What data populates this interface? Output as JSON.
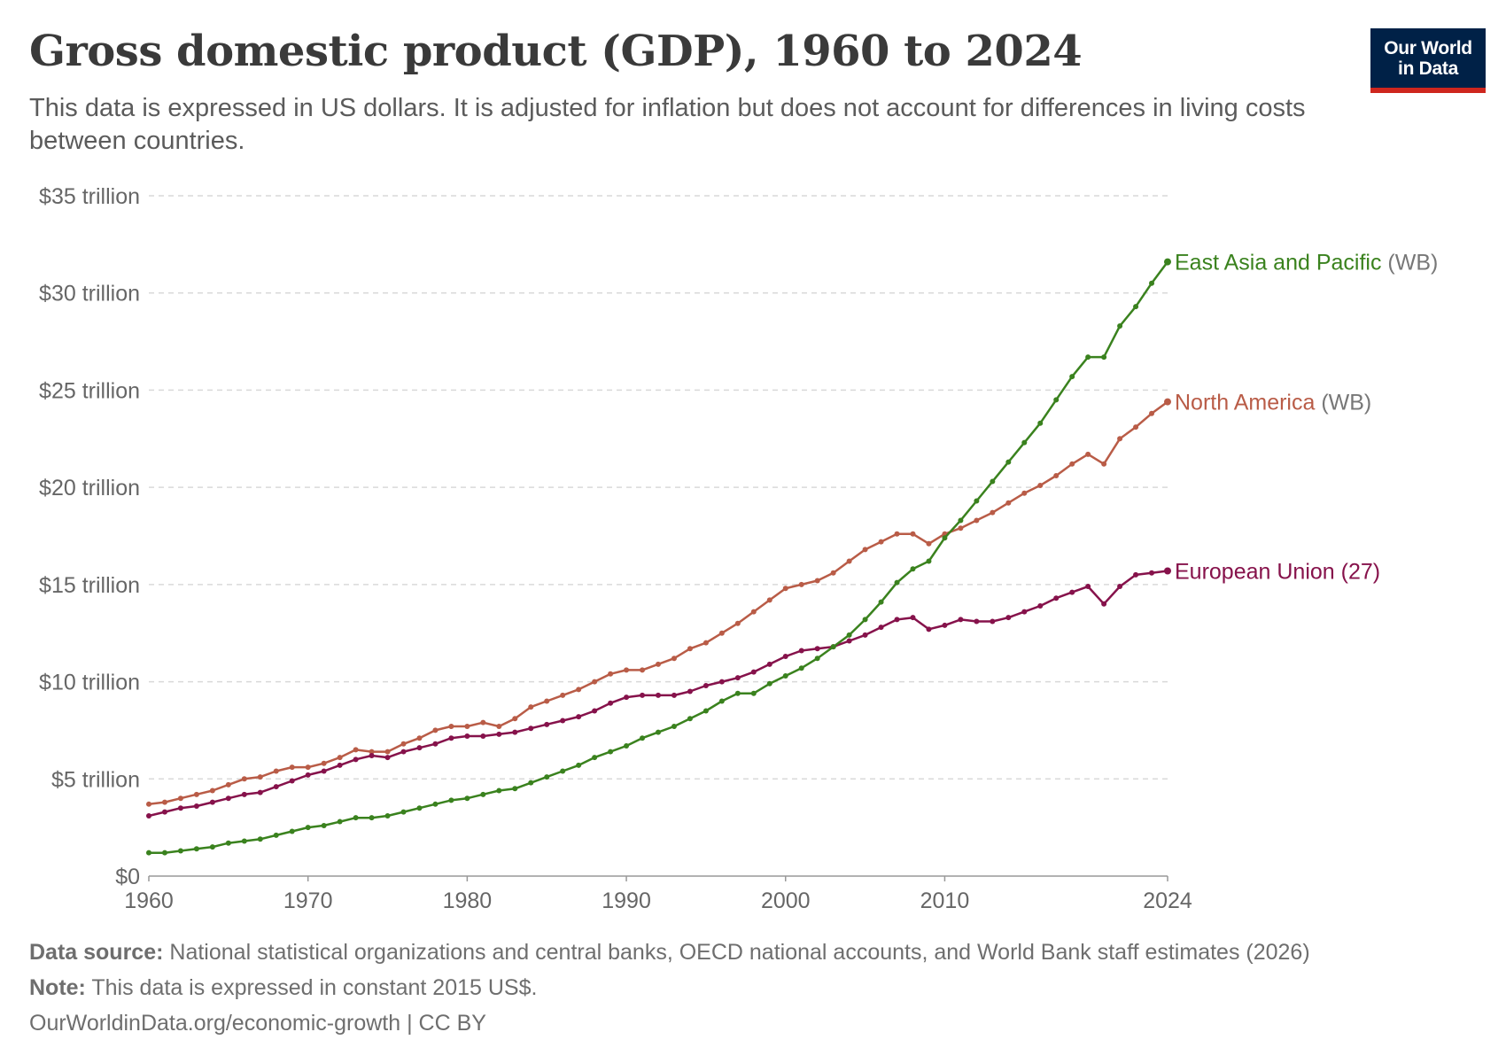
{
  "header": {
    "title": "Gross domestic product (GDP), 1960 to 2024",
    "subtitle": "This data is expressed in US dollars. It is adjusted for inflation but does not account for differences in living costs between countries."
  },
  "logo": {
    "line1": "Our World",
    "line2": "in Data",
    "bg_color": "#002147",
    "accent_color": "#ce261e"
  },
  "chart_data": {
    "type": "line",
    "title": "Gross domestic product (GDP), 1960 to 2024",
    "ylim": [
      0,
      35000000000000
    ],
    "xlim": [
      1960,
      2024
    ],
    "y_ticks": [
      {
        "value": 0,
        "label": "$0"
      },
      {
        "value": 5000000000000,
        "label": "$5 trillion"
      },
      {
        "value": 10000000000000,
        "label": "$10 trillion"
      },
      {
        "value": 15000000000000,
        "label": "$15 trillion"
      },
      {
        "value": 20000000000000,
        "label": "$20 trillion"
      },
      {
        "value": 25000000000000,
        "label": "$25 trillion"
      },
      {
        "value": 30000000000000,
        "label": "$30 trillion"
      },
      {
        "value": 35000000000000,
        "label": "$35 trillion"
      }
    ],
    "x_ticks": [
      {
        "value": 1960,
        "label": "1960"
      },
      {
        "value": 1970,
        "label": "1970"
      },
      {
        "value": 1980,
        "label": "1980"
      },
      {
        "value": 1990,
        "label": "1990"
      },
      {
        "value": 2000,
        "label": "2000"
      },
      {
        "value": 2010,
        "label": "2010"
      },
      {
        "value": 2024,
        "label": "2024"
      }
    ],
    "grid": "horizontal dashed",
    "legend": "inline labels at line ends",
    "x": [
      1960,
      1961,
      1962,
      1963,
      1964,
      1965,
      1966,
      1967,
      1968,
      1969,
      1970,
      1971,
      1972,
      1973,
      1974,
      1975,
      1976,
      1977,
      1978,
      1979,
      1980,
      1981,
      1982,
      1983,
      1984,
      1985,
      1986,
      1987,
      1988,
      1989,
      1990,
      1991,
      1992,
      1993,
      1994,
      1995,
      1996,
      1997,
      1998,
      1999,
      2000,
      2001,
      2002,
      2003,
      2004,
      2005,
      2006,
      2007,
      2008,
      2009,
      2010,
      2011,
      2012,
      2013,
      2014,
      2015,
      2016,
      2017,
      2018,
      2019,
      2020,
      2021,
      2022,
      2023,
      2024
    ],
    "series": [
      {
        "name": "North America",
        "suffix": " (WB)",
        "color": "#b95c47",
        "values": [
          3.7,
          3.8,
          4.0,
          4.2,
          4.4,
          4.7,
          5.0,
          5.1,
          5.4,
          5.6,
          5.6,
          5.8,
          6.1,
          6.5,
          6.4,
          6.4,
          6.8,
          7.1,
          7.5,
          7.7,
          7.7,
          7.9,
          7.7,
          8.1,
          8.7,
          9.0,
          9.3,
          9.6,
          10.0,
          10.4,
          10.6,
          10.6,
          10.9,
          11.2,
          11.7,
          12.0,
          12.5,
          13.0,
          13.6,
          14.2,
          14.8,
          15.0,
          15.2,
          15.6,
          16.2,
          16.8,
          17.2,
          17.6,
          17.6,
          17.1,
          17.6,
          17.9,
          18.3,
          18.7,
          19.2,
          19.7,
          20.1,
          20.6,
          21.2,
          21.7,
          21.2,
          22.5,
          23.1,
          23.8,
          24.4
        ]
      },
      {
        "name": "European Union",
        "suffix": " (27)",
        "color": "#86124b",
        "values": [
          3.1,
          3.3,
          3.5,
          3.6,
          3.8,
          4.0,
          4.2,
          4.3,
          4.6,
          4.9,
          5.2,
          5.4,
          5.7,
          6.0,
          6.2,
          6.1,
          6.4,
          6.6,
          6.8,
          7.1,
          7.2,
          7.2,
          7.3,
          7.4,
          7.6,
          7.8,
          8.0,
          8.2,
          8.5,
          8.9,
          9.2,
          9.3,
          9.3,
          9.3,
          9.5,
          9.8,
          10.0,
          10.2,
          10.5,
          10.9,
          11.3,
          11.6,
          11.7,
          11.8,
          12.1,
          12.4,
          12.8,
          13.2,
          13.3,
          12.7,
          12.9,
          13.2,
          13.1,
          13.1,
          13.3,
          13.6,
          13.9,
          14.3,
          14.6,
          14.9,
          14.0,
          14.9,
          15.5,
          15.6,
          15.7
        ]
      },
      {
        "name": "East Asia and Pacific",
        "suffix": " (WB)",
        "color": "#3a821e",
        "values": [
          1.2,
          1.2,
          1.3,
          1.4,
          1.5,
          1.7,
          1.8,
          1.9,
          2.1,
          2.3,
          2.5,
          2.6,
          2.8,
          3.0,
          3.0,
          3.1,
          3.3,
          3.5,
          3.7,
          3.9,
          4.0,
          4.2,
          4.4,
          4.5,
          4.8,
          5.1,
          5.4,
          5.7,
          6.1,
          6.4,
          6.7,
          7.1,
          7.4,
          7.7,
          8.1,
          8.5,
          9.0,
          9.4,
          9.4,
          9.9,
          10.3,
          10.7,
          11.2,
          11.8,
          12.4,
          13.2,
          14.1,
          15.1,
          15.8,
          16.2,
          17.4,
          18.3,
          19.3,
          20.3,
          21.3,
          22.3,
          23.3,
          24.5,
          25.7,
          26.7,
          26.7,
          28.3,
          29.3,
          30.5,
          31.6
        ]
      }
    ]
  },
  "footer": {
    "source_label": "Data source:",
    "source_text": " National statistical organizations and central banks, OECD national accounts, and World Bank staff estimates (2026)",
    "note_label": "Note:",
    "note_text": " This data is expressed in constant 2015 US$.",
    "url_text": "OurWorldinData.org/economic-growth | CC BY"
  }
}
